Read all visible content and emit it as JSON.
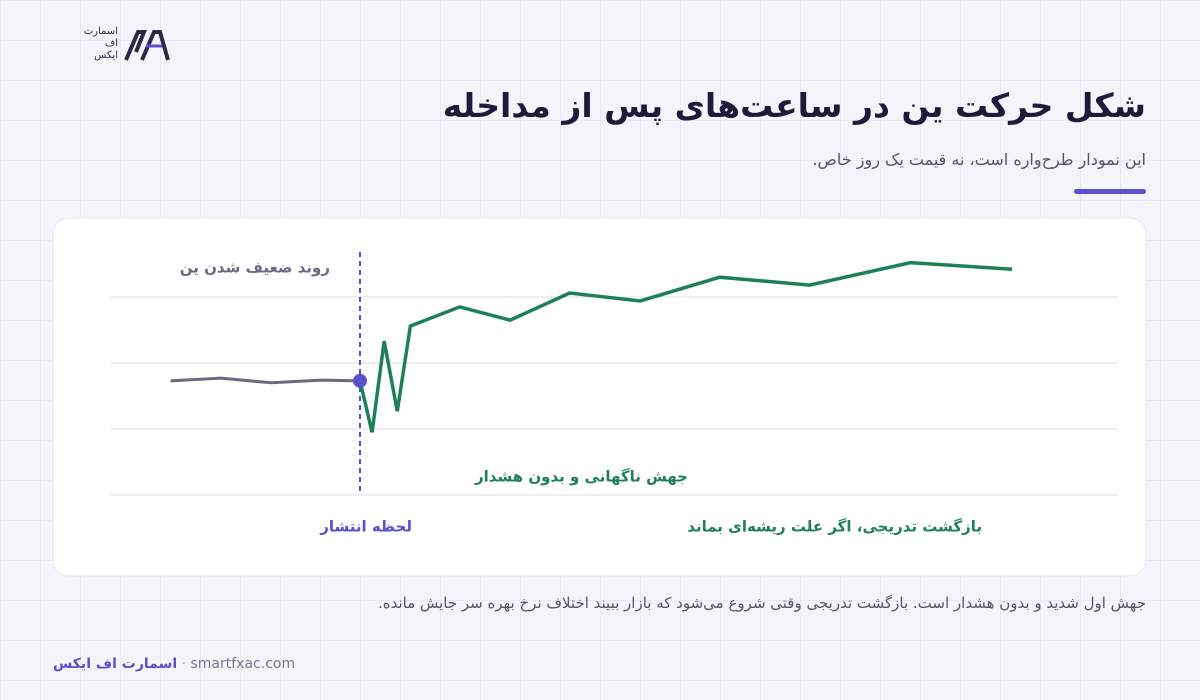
{
  "logo": {
    "lines": [
      "اسمارت",
      "اف",
      "ایکس"
    ]
  },
  "header": {
    "title": "شکل حرکت ین در ساعت‌های پس از مداخله",
    "subtitle": "این نمودار طرح‌واره است، نه قیمت یک روز خاص."
  },
  "chart_data": {
    "type": "line",
    "xlim": [
      0,
      100
    ],
    "ylim": [
      0,
      3
    ],
    "yticks": [
      0,
      1,
      2,
      3
    ],
    "grid": true,
    "event": {
      "x": 24.8,
      "label": "لحظه انتشار",
      "color": "#5a4fcf"
    },
    "series": [
      {
        "color": "#6b6a80",
        "x": [
          6,
          11,
          16,
          21,
          24.8
        ],
        "values": [
          1.73,
          1.77,
          1.7,
          1.74,
          1.73
        ]
      },
      {
        "color": "#1f8057",
        "x": [
          24.8,
          26,
          27.2,
          28.5,
          29.8,
          34.7,
          39.7,
          45.6,
          52.6,
          60.5,
          69.4,
          79.4,
          89.5
        ],
        "values": [
          1.73,
          0.95,
          2.33,
          1.27,
          2.56,
          2.85,
          2.65,
          3.06,
          2.94,
          3.3,
          3.18,
          3.52,
          3.42
        ]
      }
    ],
    "annotations": [
      "روند ضعیف شدن ین",
      "جهش ناگهانی و بدون هشدار",
      "بازگشت تدریجی، اگر علت ریشه‌ای بماند"
    ]
  },
  "caption": "جهش اول شدید و بدون هشدار است. بازگشت تدریجی وقتی شروع می‌شود که بازار ببیند اختلاف نرخ بهره سر جایش مانده.",
  "footer": {
    "brand": "اسمارت اف ایکس",
    "site": "smartfxac.com"
  }
}
